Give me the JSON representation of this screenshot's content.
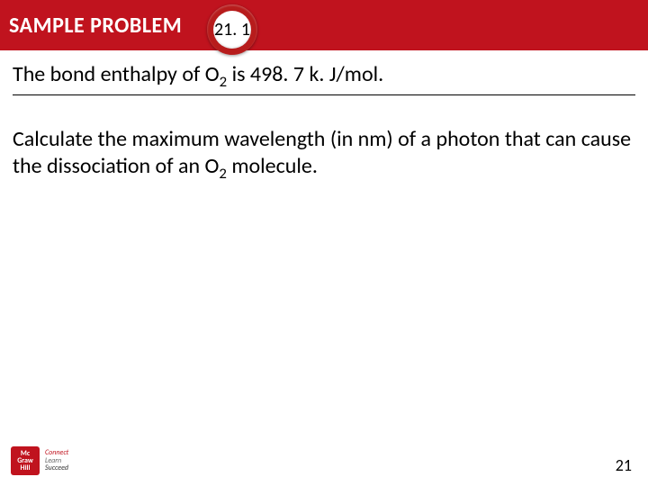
{
  "header": {
    "title": "SAMPLE PROBLEM",
    "badge": "21. 1"
  },
  "body": {
    "line1_pre": "The bond enthalpy of O",
    "line1_sub": "2",
    "line1_post": " is 498. 7 k. J/mol.",
    "line2_pre": "Calculate the maximum wavelength (in nm) of a photon that can cause the dissociation of an O",
    "line2_sub": "2",
    "line2_post": " molecule."
  },
  "footer": {
    "logo_line1": "Mc",
    "logo_line2": "Graw",
    "logo_line3": "Hill",
    "tag1": "Connect",
    "tag2": "Learn",
    "tag3": "Succeed",
    "page": "21"
  },
  "colors": {
    "brand_red": "#c0131e",
    "text": "#000000",
    "bg": "#ffffff"
  }
}
